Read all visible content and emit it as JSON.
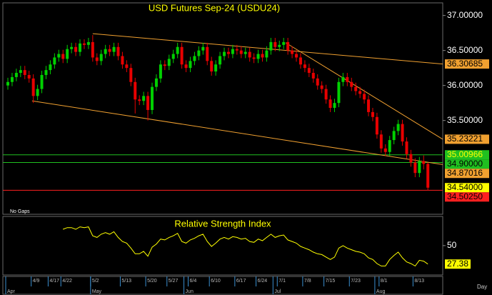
{
  "chart_data": [
    {
      "type": "candlestick",
      "title": "USD Futures  Sep-24  (USDU24)",
      "note": "No Gaps",
      "x_unit": "Day",
      "open": [
        36.0,
        36.05,
        36.12,
        36.18,
        36.22,
        36.15,
        36.1,
        35.85,
        35.95,
        36.15,
        36.22,
        36.3,
        36.4,
        36.45,
        36.38,
        36.52,
        36.55,
        36.48,
        36.6,
        36.58,
        36.62,
        36.4,
        36.35,
        36.45,
        36.52,
        36.48,
        36.55,
        36.42,
        36.3,
        36.25,
        36.05,
        35.8,
        35.78,
        35.85,
        35.65,
        35.98,
        36.1,
        36.3,
        36.28,
        36.38,
        36.45,
        36.55,
        36.3,
        36.25,
        36.35,
        36.42,
        36.5,
        36.55,
        36.35,
        36.2,
        36.3,
        36.42,
        36.48,
        36.45,
        36.52,
        36.5,
        36.45,
        36.48,
        36.4,
        36.38,
        36.45,
        36.4,
        36.5,
        36.62,
        36.55,
        36.58,
        36.62,
        36.5,
        36.45,
        36.4,
        36.3,
        36.25,
        36.18,
        36.1,
        36.0,
        35.95,
        35.8,
        35.68,
        35.75,
        36.05,
        36.12,
        36.05,
        35.98,
        35.92,
        35.88,
        35.8,
        35.62,
        35.55,
        35.3,
        35.1,
        35.05,
        35.22,
        35.35,
        35.45,
        35.2,
        35.02,
        34.9,
        34.75,
        34.92,
        34.88
      ],
      "high": [
        36.11,
        36.18,
        36.24,
        36.28,
        36.28,
        36.21,
        36.16,
        36.01,
        36.21,
        36.28,
        36.36,
        36.46,
        36.51,
        36.51,
        36.58,
        36.61,
        36.61,
        36.66,
        36.66,
        36.68,
        36.72,
        36.46,
        36.51,
        36.58,
        36.58,
        36.61,
        36.61,
        36.48,
        36.36,
        36.31,
        36.11,
        35.86,
        35.91,
        35.91,
        36.04,
        36.16,
        36.36,
        36.36,
        36.44,
        36.51,
        36.61,
        36.61,
        36.36,
        36.41,
        36.48,
        36.56,
        36.61,
        36.61,
        36.41,
        36.36,
        36.48,
        36.54,
        36.54,
        36.58,
        36.58,
        36.56,
        36.54,
        36.54,
        36.46,
        36.51,
        36.51,
        36.56,
        36.68,
        36.68,
        36.64,
        36.68,
        36.68,
        36.56,
        36.51,
        36.46,
        36.36,
        36.31,
        36.24,
        36.16,
        36.06,
        36.01,
        35.86,
        35.81,
        36.11,
        36.18,
        36.18,
        36.11,
        36.04,
        35.98,
        35.94,
        35.86,
        35.68,
        35.61,
        35.36,
        35.16,
        35.28,
        35.41,
        35.51,
        35.51,
        35.26,
        35.08,
        34.96,
        34.98,
        35.0,
        34.9
      ],
      "low": [
        35.94,
        35.99,
        36.06,
        36.12,
        36.09,
        36.04,
        35.75,
        35.79,
        35.89,
        36.09,
        36.16,
        36.24,
        36.34,
        36.32,
        36.32,
        36.46,
        36.42,
        36.42,
        36.52,
        36.52,
        36.34,
        36.29,
        36.29,
        36.39,
        36.42,
        36.42,
        36.36,
        36.24,
        36.19,
        35.99,
        35.6,
        35.72,
        35.72,
        35.5,
        35.59,
        35.92,
        36.04,
        36.22,
        36.22,
        36.32,
        36.39,
        36.24,
        36.19,
        36.19,
        36.29,
        36.36,
        36.44,
        36.29,
        36.14,
        36.14,
        36.24,
        36.36,
        36.39,
        36.39,
        36.44,
        36.39,
        36.39,
        36.34,
        36.32,
        36.32,
        36.34,
        36.34,
        36.44,
        36.49,
        36.49,
        36.52,
        36.44,
        36.39,
        36.34,
        36.24,
        36.19,
        36.12,
        36.04,
        35.94,
        35.89,
        35.74,
        35.62,
        35.62,
        35.69,
        35.99,
        35.99,
        35.92,
        35.86,
        35.82,
        35.74,
        35.56,
        35.49,
        35.24,
        35.04,
        34.99,
        34.99,
        35.16,
        35.29,
        35.14,
        34.96,
        34.84,
        34.69,
        34.69,
        34.8,
        34.5025
      ],
      "close": [
        36.05,
        36.12,
        36.18,
        36.22,
        36.15,
        36.1,
        35.85,
        35.95,
        36.15,
        36.22,
        36.3,
        36.4,
        36.45,
        36.38,
        36.52,
        36.55,
        36.48,
        36.6,
        36.58,
        36.62,
        36.4,
        36.35,
        36.45,
        36.52,
        36.48,
        36.55,
        36.42,
        36.3,
        36.25,
        36.05,
        35.8,
        35.78,
        35.85,
        35.65,
        35.98,
        36.1,
        36.3,
        36.28,
        36.38,
        36.45,
        36.55,
        36.3,
        36.25,
        36.35,
        36.42,
        36.5,
        36.55,
        36.35,
        36.2,
        36.3,
        36.42,
        36.48,
        36.45,
        36.52,
        36.5,
        36.45,
        36.48,
        36.4,
        36.38,
        36.45,
        36.4,
        36.5,
        36.62,
        36.55,
        36.58,
        36.62,
        36.5,
        36.45,
        36.4,
        36.3,
        36.25,
        36.18,
        36.1,
        36.0,
        35.95,
        35.8,
        35.68,
        35.75,
        36.05,
        36.12,
        36.05,
        35.98,
        35.92,
        35.88,
        35.8,
        35.62,
        35.55,
        35.3,
        35.1,
        35.05,
        35.22,
        35.35,
        35.45,
        35.2,
        35.02,
        34.9,
        34.75,
        34.92,
        34.88,
        34.54
      ],
      "up_color": "#00d000",
      "down_color": "#e80000",
      "xlim": [
        -1.18,
        102.5
      ],
      "ylim": [
        34.16,
        37.17
      ],
      "yticks": [
        {
          "value": 37,
          "label": "37.00000"
        },
        {
          "value": 36.5,
          "label": "36.50000"
        },
        {
          "value": 36,
          "label": "36.00000"
        },
        {
          "value": 35.5,
          "label": "35.50000"
        }
      ],
      "xticks": [
        {
          "value": 6,
          "label": "4/9"
        },
        {
          "value": 10,
          "label": "4/17"
        },
        {
          "value": 13,
          "label": "4/22"
        },
        {
          "value": 20,
          "label": "5/2"
        },
        {
          "value": 27,
          "label": "5/13"
        },
        {
          "value": 33,
          "label": "5/20"
        },
        {
          "value": 38,
          "label": "5/27"
        },
        {
          "value": 43,
          "label": "6/4"
        },
        {
          "value": 48,
          "label": "6/10"
        },
        {
          "value": 54,
          "label": "6/17"
        },
        {
          "value": 59,
          "label": "6/24"
        },
        {
          "value": 64,
          "label": "7/1"
        },
        {
          "value": 70,
          "label": "7/8"
        },
        {
          "value": 75,
          "label": "7/15"
        },
        {
          "value": 81,
          "label": "7/23"
        },
        {
          "value": 88,
          "label": "8/1"
        },
        {
          "value": 96,
          "label": "8/13"
        }
      ],
      "month_ticks": [
        {
          "value": 0,
          "label": "Apr"
        },
        {
          "value": 20,
          "label": "May"
        },
        {
          "value": 42,
          "label": "Jun"
        },
        {
          "value": 63,
          "label": "Jul"
        },
        {
          "value": 87,
          "label": "Aug"
        }
      ],
      "trendlines": [
        {
          "from": [
            20,
            36.74
          ],
          "to": [
            102.5,
            36.30685
          ],
          "color": "#f0a030"
        },
        {
          "from": [
            65.5,
            36.61
          ],
          "to": [
            102.5,
            35.23221
          ],
          "color": "#f0a030"
        },
        {
          "from": [
            5.7,
            35.78
          ],
          "to": [
            102.5,
            34.87016
          ],
          "color": "#f0a030"
        }
      ],
      "levels": [
        {
          "value": 36.30685,
          "label": "36.30685",
          "color": "#f0a030",
          "text_color": "#000000",
          "line": false
        },
        {
          "value": 35.23221,
          "label": "35.23221",
          "color": "#f0a030",
          "text_color": "#000000",
          "line": false
        },
        {
          "value": 35.00966,
          "label": "35.00966",
          "color": "#20c020",
          "text_color": "#ffff00",
          "line": true
        },
        {
          "value": 34.9,
          "label": "34.90000",
          "color": "#20c020",
          "text_color": "#000000",
          "line": true
        },
        {
          "value": 34.87016,
          "label": "34.87016",
          "color": "#f0a030",
          "text_color": "#000000",
          "line": false
        },
        {
          "value": 34.54,
          "label": "34.54000",
          "color": "#ffff00",
          "text_color": "#000000",
          "line": false
        },
        {
          "value": 34.5025,
          "label": "34.50250",
          "color": "#ff2020",
          "text_color": "#000000",
          "line": true
        }
      ]
    },
    {
      "type": "line",
      "title": "Relative Strength Index",
      "color": "#ffff00",
      "values": [
        null,
        null,
        null,
        null,
        null,
        null,
        null,
        null,
        null,
        null,
        null,
        null,
        null,
        70,
        72,
        72,
        70,
        73,
        72,
        73,
        62,
        60,
        64,
        66,
        64,
        67,
        60,
        55,
        53,
        47,
        40,
        40,
        43,
        37,
        48,
        52,
        58,
        57,
        60,
        62,
        65,
        55,
        53,
        57,
        59,
        62,
        64,
        55,
        49,
        53,
        58,
        60,
        58,
        61,
        60,
        58,
        59,
        55,
        54,
        58,
        56,
        60,
        64,
        60,
        62,
        63,
        57,
        55,
        53,
        49,
        47,
        45,
        42,
        40,
        39,
        36,
        33,
        36,
        47,
        50,
        47,
        45,
        43,
        42,
        40,
        35,
        33,
        28,
        25,
        25,
        33,
        38,
        42,
        35,
        30,
        28,
        25,
        32,
        31,
        27.38
      ],
      "value_label": "27.38",
      "xlim": [
        -1.18,
        102.5
      ],
      "ylim": [
        14,
        84
      ],
      "yticks": [
        50
      ]
    }
  ]
}
